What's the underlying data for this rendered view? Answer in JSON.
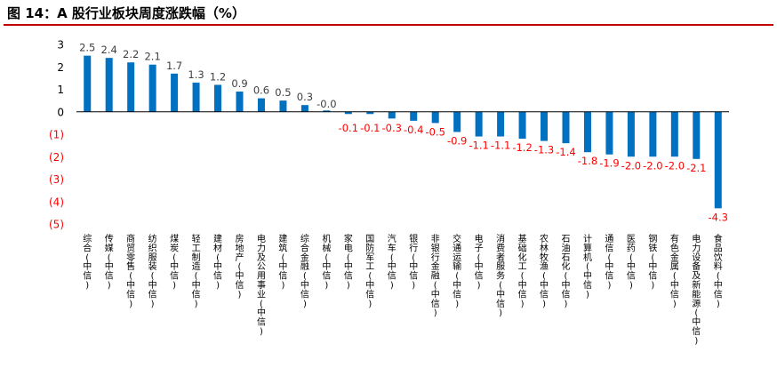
{
  "figure_title": "图 14：A 股行业板块周度涨跌幅（%）",
  "colors": {
    "bar": "#0070c0",
    "negative_label": "#ff0000",
    "positive_label": "#404040",
    "title_rule": "#c00000"
  },
  "chart_data": {
    "type": "bar",
    "title": "",
    "xlabel": "",
    "ylabel": "",
    "ylim": [
      -5,
      3
    ],
    "yticks": [
      "3",
      "2",
      "1",
      "0",
      "(1)",
      "(2)",
      "(3)",
      "(4)",
      "(5)"
    ],
    "grid": false,
    "legend": "none",
    "categories": [
      "综合(中信)",
      "传媒(中信)",
      "商贸零售(中信)",
      "纺织服装(中信)",
      "煤炭(中信)",
      "轻工制造(中信)",
      "建材(中信)",
      "房地产(中信)",
      "电力及公用事业(中信)",
      "建筑(中信)",
      "综合金融(中信)",
      "机械(中信)",
      "家电(中信)",
      "国防军工(中信)",
      "汽车(中信)",
      "银行(中信)",
      "非银行金融(中信)",
      "交通运输(中信)",
      "电子(中信)",
      "消费者服务(中信)",
      "基础化工(中信)",
      "农林牧渔(中信)",
      "石油石化(中信)",
      "计算机(中信)",
      "通信(中信)",
      "医药(中信)",
      "钢铁(中信)",
      "有色金属(中信)",
      "电力设备及新能源(中信)",
      "食品饮料(中信)"
    ],
    "values": [
      2.5,
      2.4,
      2.2,
      2.1,
      1.7,
      1.3,
      1.2,
      0.9,
      0.6,
      0.5,
      0.3,
      -0.0,
      -0.1,
      -0.1,
      -0.3,
      -0.4,
      -0.5,
      -0.9,
      -1.1,
      -1.1,
      -1.2,
      -1.3,
      -1.4,
      -1.8,
      -1.9,
      -2.0,
      -2.0,
      -2.0,
      -2.1,
      -4.3
    ],
    "data_labels": [
      "2.5",
      "2.4",
      "2.2",
      "2.1",
      "1.7",
      "1.3",
      "1.2",
      "0.9",
      "0.6",
      "0.5",
      "0.3",
      "-0.0",
      "-0.1",
      "-0.1",
      "-0.3",
      "-0.4",
      "-0.5",
      "-0.9",
      "-1.1",
      "-1.1",
      "-1.2",
      "-1.3",
      "-1.4",
      "-1.8",
      "-1.9",
      "-2.0",
      "-2.0",
      "-2.0",
      "-2.1",
      "-4.3"
    ]
  }
}
